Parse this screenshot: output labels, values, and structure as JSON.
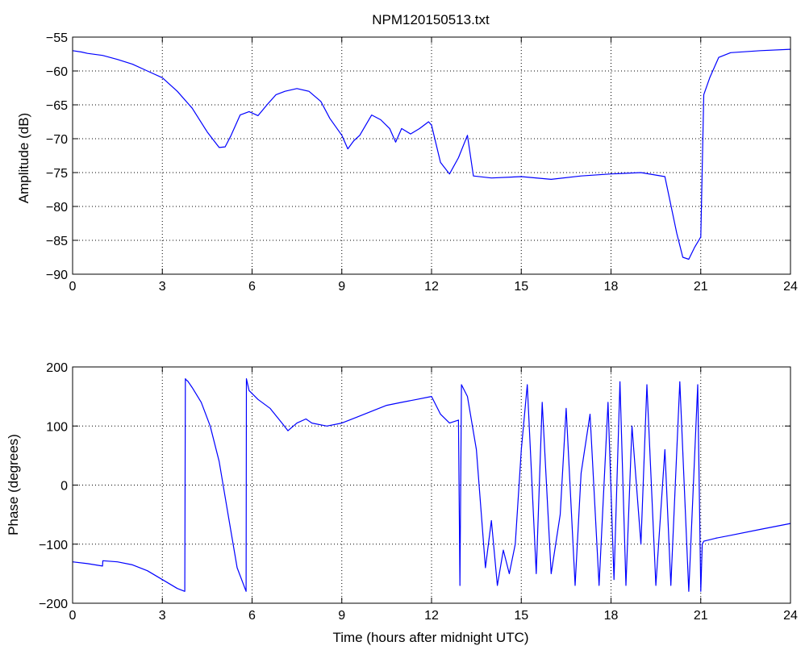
{
  "figure": {
    "title": "NPM120150513.txt",
    "background": "#ffffff",
    "line_color": "#0000ff"
  },
  "chart_data": [
    {
      "type": "line",
      "title": "NPM120150513.txt",
      "xlabel": "",
      "ylabel": "Amplitude (dB)",
      "xlim": [
        0,
        24
      ],
      "ylim": [
        -90,
        -55
      ],
      "xticks": [
        0,
        3,
        6,
        9,
        12,
        15,
        18,
        21,
        24
      ],
      "xtick_labels": [
        "0",
        "3",
        "6",
        "9",
        "12",
        "15",
        "18",
        "21",
        "24"
      ],
      "yticks": [
        -90,
        -85,
        -80,
        -75,
        -70,
        -65,
        -60,
        -55
      ],
      "ytick_labels": [
        "−90",
        "−85",
        "−80",
        "−75",
        "−70",
        "−65",
        "−60",
        "−55"
      ],
      "grid": true,
      "series": [
        {
          "color": "#0000ff",
          "x": [
            0,
            0.3,
            0.5,
            1,
            1.5,
            2,
            2.5,
            3,
            3.5,
            4,
            4.5,
            4.9,
            5.1,
            5.3,
            5.6,
            5.9,
            6.2,
            6.5,
            6.8,
            7.1,
            7.5,
            7.9,
            8.3,
            8.6,
            9,
            9.2,
            9.4,
            9.6,
            9.8,
            10,
            10.3,
            10.6,
            10.8,
            11,
            11.3,
            11.6,
            11.9,
            12,
            12.3,
            12.6,
            12.9,
            13.2,
            13.4,
            14,
            15,
            16,
            17,
            18,
            19,
            19.8,
            20.2,
            20.4,
            20.6,
            20.8,
            21,
            21.1,
            21.3,
            21.6,
            22,
            23,
            24
          ],
          "y": [
            -57,
            -57.2,
            -57.4,
            -57.7,
            -58.3,
            -59,
            -60,
            -61,
            -63,
            -65.5,
            -69,
            -71.3,
            -71.2,
            -69.5,
            -66.5,
            -66,
            -66.6,
            -65,
            -63.5,
            -63,
            -62.6,
            -63,
            -64.5,
            -67,
            -69.5,
            -71.5,
            -70.3,
            -69.5,
            -68,
            -66.5,
            -67.2,
            -68.5,
            -70.5,
            -68.5,
            -69.3,
            -68.5,
            -67.5,
            -68,
            -73.5,
            -75.2,
            -72.8,
            -69.5,
            -75.5,
            -75.8,
            -75.6,
            -76,
            -75.5,
            -75.2,
            -75,
            -75.6,
            -84,
            -87.5,
            -87.8,
            -86,
            -84.5,
            -63.5,
            -61,
            -58,
            -57.3,
            -57,
            -56.8
          ]
        }
      ]
    },
    {
      "type": "line",
      "xlabel": "Time (hours after midnight UTC)",
      "ylabel": "Phase (degrees)",
      "xlim": [
        0,
        24
      ],
      "ylim": [
        -200,
        200
      ],
      "xticks": [
        0,
        3,
        6,
        9,
        12,
        15,
        18,
        21,
        24
      ],
      "xtick_labels": [
        "0",
        "3",
        "6",
        "9",
        "12",
        "15",
        "18",
        "21",
        "24"
      ],
      "yticks": [
        -200,
        -100,
        0,
        100,
        200
      ],
      "ytick_labels": [
        "−200",
        "−100",
        "0",
        "100",
        "200"
      ],
      "grid": true,
      "series": [
        {
          "color": "#0000ff",
          "x": [
            0,
            0.5,
            1.0,
            1.01,
            1.5,
            2,
            2.5,
            3,
            3.5,
            3.75,
            3.77,
            3.8,
            3.85,
            4,
            4.3,
            4.6,
            4.9,
            5.2,
            5.5,
            5.8,
            5.81,
            5.9,
            6.2,
            6.6,
            7,
            7.2,
            7.5,
            7.8,
            8,
            8.5,
            9,
            9.5,
            10,
            10.5,
            11,
            11.5,
            12,
            12.3,
            12.6,
            12.9,
            12.95,
            13.0,
            13.2,
            13.5,
            13.8,
            14.0,
            14.2,
            14.4,
            14.6,
            14.8,
            15.0,
            15.2,
            15.5,
            15.7,
            16.0,
            16.3,
            16.5,
            16.8,
            17.0,
            17.3,
            17.6,
            17.9,
            18.1,
            18.3,
            18.5,
            18.7,
            19.0,
            19.2,
            19.5,
            19.8,
            20.0,
            20.3,
            20.6,
            20.9,
            21.0,
            21.05,
            21.1,
            21.5,
            22,
            23,
            24
          ],
          "y": [
            -130,
            -133,
            -137,
            -128,
            -130,
            -135,
            -145,
            -160,
            -175,
            -180,
            180,
            178,
            176,
            165,
            140,
            100,
            40,
            -50,
            -140,
            -180,
            180,
            160,
            145,
            130,
            105,
            92,
            105,
            112,
            105,
            100,
            105,
            115,
            125,
            135,
            140,
            145,
            150,
            120,
            105,
            110,
            -170,
            170,
            150,
            60,
            -140,
            -60,
            -170,
            -110,
            -150,
            -100,
            60,
            170,
            -150,
            140,
            -150,
            -50,
            130,
            -170,
            20,
            120,
            -170,
            140,
            -160,
            175,
            -170,
            100,
            -100,
            170,
            -170,
            60,
            -170,
            175,
            -180,
            170,
            -180,
            -100,
            -95,
            -90,
            -85,
            -75,
            -65
          ]
        }
      ]
    }
  ]
}
